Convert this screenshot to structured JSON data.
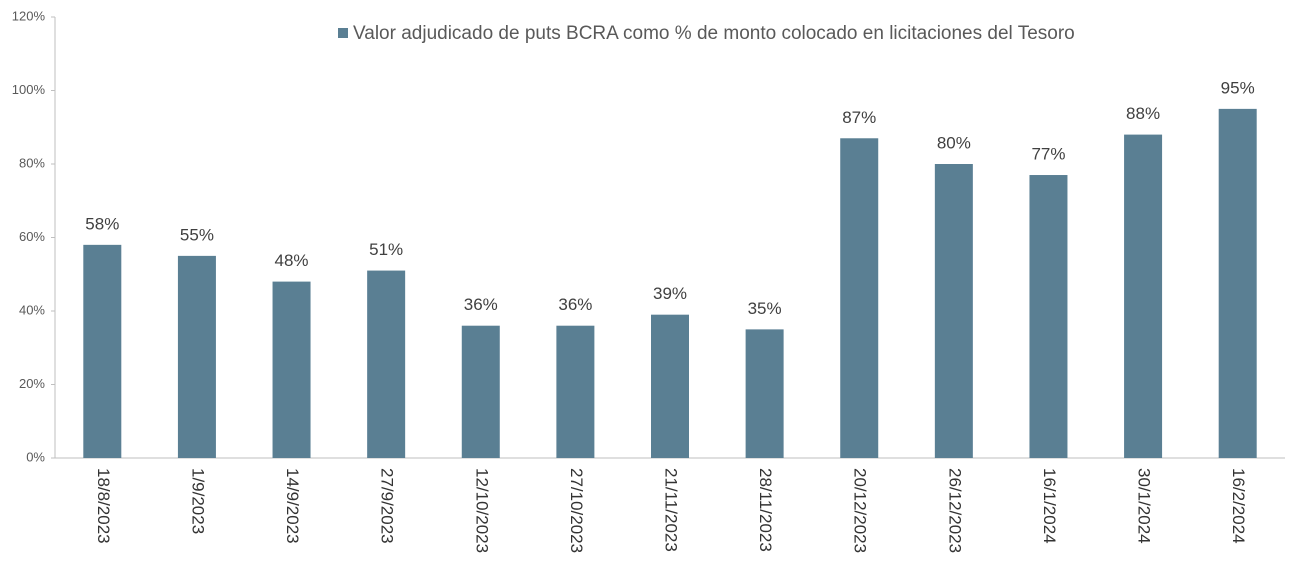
{
  "chart_data": {
    "type": "bar",
    "categories": [
      "18/8/2023",
      "1/9/2023",
      "14/9/2023",
      "27/9/2023",
      "12/10/2023",
      "27/10/2023",
      "21/11/2023",
      "28/11/2023",
      "20/12/2023",
      "26/12/2023",
      "16/1/2024",
      "30/1/2024",
      "16/2/2024"
    ],
    "series": [
      {
        "name": "Valor adjudicado de puts BCRA como % de monto colocado en licitaciones del Tesoro",
        "color": "#5a7f93",
        "values": [
          58,
          55,
          48,
          51,
          36,
          36,
          39,
          35,
          87,
          80,
          77,
          88,
          95
        ],
        "value_labels": [
          "58%",
          "55%",
          "48%",
          "51%",
          "36%",
          "36%",
          "39%",
          "35%",
          "87%",
          "80%",
          "77%",
          "88%",
          "95%"
        ]
      }
    ],
    "ylim": [
      0,
      120
    ],
    "yticks": [
      {
        "value": 0,
        "label": "0%"
      },
      {
        "value": 20,
        "label": "20%"
      },
      {
        "value": 40,
        "label": "40%"
      },
      {
        "value": 60,
        "label": "60%"
      },
      {
        "value": 80,
        "label": "80%"
      },
      {
        "value": 100,
        "label": "100%"
      },
      {
        "value": 120,
        "label": "120%"
      }
    ],
    "grid": false,
    "legend": "top"
  }
}
